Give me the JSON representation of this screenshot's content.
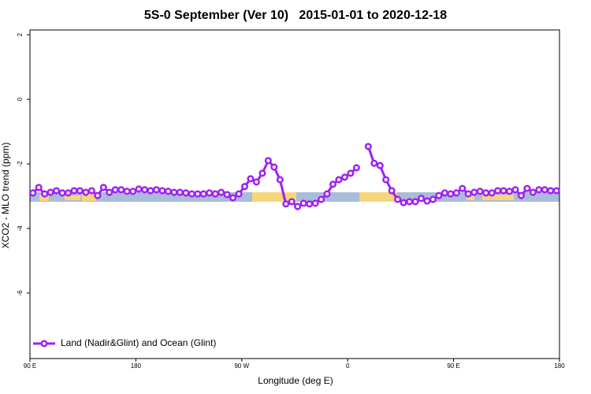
{
  "chart_data": {
    "type": "line",
    "title": "5S-0 September (Ver 10)   2015-01-01 to 2020-12-18",
    "xlabel": "Longitude (deg E)",
    "ylabel": "XCO2 - MLO trend (ppm)",
    "x": [
      92.5,
      97.5,
      102.5,
      107.5,
      112.5,
      117.5,
      122.5,
      127.5,
      132.5,
      137.5,
      142.5,
      147.5,
      152.5,
      157.5,
      162.5,
      167.5,
      172.5,
      177.5,
      182.5,
      187.5,
      192.5,
      197.5,
      202.5,
      207.5,
      212.5,
      217.5,
      222.5,
      227.5,
      232.5,
      237.5,
      242.5,
      247.5,
      252.5,
      257.5,
      262.5,
      267.5,
      272.5,
      277.5,
      282.5,
      287.5,
      292.5,
      297.5,
      302.5,
      307.5,
      312.5,
      317.5,
      322.5,
      327.5,
      332.5,
      337.5,
      342.5,
      347.5,
      352.5,
      357.5,
      362.5,
      367.5,
      372.5,
      377.5,
      382.5,
      387.5,
      392.5,
      397.5,
      402.5,
      407.5,
      412.5,
      417.5,
      422.5,
      427.5,
      432.5,
      437.5,
      442.5,
      447.5,
      452.5,
      457.5,
      462.5,
      467.5,
      472.5,
      477.5,
      482.5,
      487.5,
      492.5,
      497.5,
      502.5,
      507.5,
      512.5,
      517.5,
      522.5,
      527.5,
      532.5,
      537.5
    ],
    "series": [
      {
        "name": "Land (Nadir&Glint) and Ocean (Glint)",
        "color": "#a020f0",
        "values": [
          -2.9,
          -2.73,
          -2.93,
          -2.88,
          -2.83,
          -2.9,
          -2.9,
          -2.83,
          -2.83,
          -2.88,
          -2.83,
          -2.98,
          -2.73,
          -2.88,
          -2.8,
          -2.8,
          -2.85,
          -2.85,
          -2.78,
          -2.8,
          -2.83,
          -2.8,
          -2.83,
          -2.85,
          -2.88,
          -2.88,
          -2.9,
          -2.93,
          -2.93,
          -2.93,
          -2.9,
          -2.93,
          -2.88,
          -2.95,
          -3.05,
          -2.93,
          -2.7,
          -2.46,
          -2.56,
          -2.29,
          -1.9,
          -2.1,
          -2.49,
          -3.24,
          -3.17,
          -3.32,
          -3.22,
          -3.24,
          -3.22,
          -3.1,
          -2.93,
          -2.63,
          -2.49,
          -2.41,
          -2.29,
          -2.12,
          null,
          -1.46,
          -1.98,
          -2.05,
          -2.49,
          -2.83,
          -3.1,
          -3.2,
          -3.17,
          -3.17,
          -3.07,
          -3.15,
          -3.1,
          -2.98,
          -2.9,
          -2.93,
          -2.9,
          -2.76,
          -2.93,
          -2.88,
          -2.85,
          -2.9,
          -2.9,
          -2.83,
          -2.83,
          -2.85,
          -2.8,
          -2.98,
          -2.76,
          -2.88,
          -2.8,
          -2.8,
          -2.83,
          -2.83
        ]
      }
    ],
    "xlim": [
      90,
      540
    ],
    "xticks": [
      {
        "value": 90,
        "label": "90 E"
      },
      180,
      {
        "value": 270,
        "label": "90 W"
      },
      {
        "value": 360,
        "label": "0"
      },
      {
        "value": 450,
        "label": "90 E"
      },
      {
        "value": 540,
        "label": "180"
      }
    ],
    "ylim": [
      -8.03,
      2.15
    ],
    "yticks": [
      2,
      0,
      -2,
      -4,
      -6
    ],
    "legend": "bottom-left"
  }
}
